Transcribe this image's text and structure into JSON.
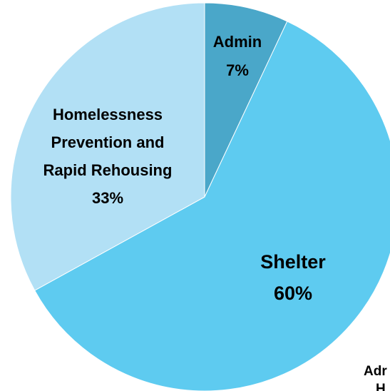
{
  "chart_data": {
    "type": "pie",
    "slices": [
      {
        "name": "Admin",
        "value": 7,
        "value_label": "7%",
        "color": "#4aa7c9"
      },
      {
        "name": "Shelter",
        "value": 60,
        "value_label": "60%",
        "color": "#5ecbf0"
      },
      {
        "name": "Homelessness Prevention and Rapid Rehousing",
        "value": 33,
        "value_label": "33%",
        "color": "#b2e0f5",
        "label_lines": [
          "Homelessness",
          "Prevention and",
          "Rapid Rehousing"
        ]
      }
    ],
    "start_angle": "12 o'clock",
    "direction": "clockwise"
  },
  "clipped_text": [
    "Adr",
    "H"
  ]
}
